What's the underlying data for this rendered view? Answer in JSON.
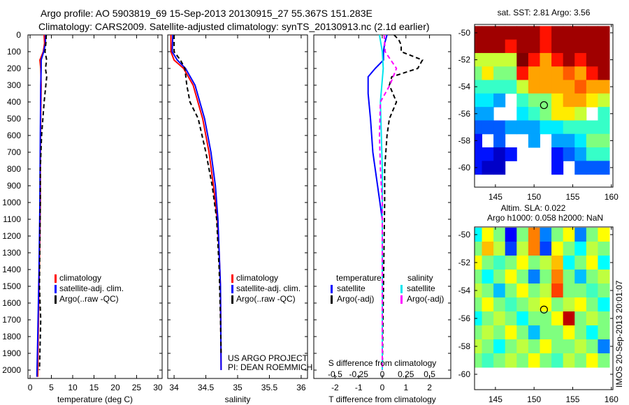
{
  "title": {
    "line1": "Argo profile: AO 5903819_69 15-Sep-2013 20130915_27 55.367S 151.283E",
    "line2": "Climatology: CARS2009. Satellite-adjusted climatology: synTS_20130913.nc (2.1d earlier)"
  },
  "side_stamp": "IMOS 20-Sep-2013 20:01:07",
  "annotation": {
    "line1": "US ARGO PROJECT",
    "line2": "PI: DEAN ROEMMICH"
  },
  "colors": {
    "clim": "#ff0000",
    "sat": "#0000ff",
    "argo": "#000000",
    "sal_sat": "#00e5ee",
    "sal_argo": "#ff00ff"
  },
  "chart_data": [
    {
      "type": "line",
      "name": "temperature",
      "xlabel": "temperature (deg C)",
      "xlim": [
        -0.5,
        31
      ],
      "ylim": [
        2050,
        0
      ],
      "xticks": [
        "0",
        "5",
        "10",
        "15",
        "20",
        "25",
        "30"
      ],
      "yticks": [
        "0",
        "100",
        "200",
        "300",
        "400",
        "500",
        "600",
        "700",
        "800",
        "900",
        "1000",
        "1100",
        "1200",
        "1300",
        "1400",
        "1500",
        "1600",
        "1700",
        "1800",
        "1900",
        "2000"
      ],
      "legend": [
        "climatology",
        "satellite-adj. clim.",
        "Argo(..raw -QC)"
      ],
      "series": [
        {
          "name": "climatology",
          "color": "#ff0000",
          "dash": false,
          "points": [
            [
              3.3,
              0
            ],
            [
              3.4,
              50
            ],
            [
              3.1,
              100
            ],
            [
              2.3,
              150
            ],
            [
              2.5,
              200
            ],
            [
              2.6,
              300
            ],
            [
              2.5,
              500
            ],
            [
              2.4,
              800
            ],
            [
              2.4,
              1000
            ],
            [
              2.3,
              1200
            ],
            [
              2.1,
              1500
            ],
            [
              1.9,
              1800
            ],
            [
              1.8,
              2040
            ]
          ]
        },
        {
          "name": "satellite-adj. clim.",
          "color": "#0000ff",
          "dash": false,
          "points": [
            [
              3.6,
              0
            ],
            [
              3.6,
              50
            ],
            [
              3.2,
              100
            ],
            [
              2.6,
              150
            ],
            [
              2.6,
              200
            ],
            [
              2.5,
              300
            ],
            [
              2.4,
              600
            ],
            [
              2.3,
              1000
            ],
            [
              2.1,
              1400
            ],
            [
              1.8,
              1800
            ],
            [
              1.6,
              2040
            ]
          ]
        },
        {
          "name": "Argo(..raw -QC)",
          "color": "#000000",
          "dash": true,
          "points": [
            [
              3.8,
              0
            ],
            [
              3.7,
              50
            ],
            [
              3.5,
              100
            ],
            [
              3.9,
              150
            ],
            [
              3.6,
              200
            ],
            [
              3.9,
              250
            ],
            [
              3.7,
              300
            ],
            [
              3.3,
              400
            ],
            [
              2.7,
              600
            ],
            [
              2.4,
              800
            ],
            [
              2.4,
              1000
            ],
            [
              2.2,
              1500
            ],
            [
              2.5,
              1700
            ],
            [
              2.2,
              2000
            ]
          ]
        }
      ]
    },
    {
      "type": "line",
      "name": "salinity",
      "xlabel": "salinity",
      "xlim": [
        33.9,
        36.1
      ],
      "ylim": [
        2050,
        0
      ],
      "xticks": [
        "34",
        "34.5",
        "35",
        "35.5",
        "36"
      ],
      "legend": [
        "climatology",
        "satellite-adj. clim.",
        "Argo(..raw -QC)"
      ],
      "series": [
        {
          "name": "climatology",
          "color": "#ff0000",
          "dash": false,
          "points": [
            [
              33.95,
              0
            ],
            [
              33.95,
              100
            ],
            [
              34.0,
              150
            ],
            [
              34.15,
              200
            ],
            [
              34.3,
              300
            ],
            [
              34.45,
              500
            ],
            [
              34.55,
              700
            ],
            [
              34.62,
              900
            ],
            [
              34.68,
              1100
            ],
            [
              34.71,
              1300
            ],
            [
              34.73,
              1500
            ],
            [
              34.74,
              2000
            ]
          ]
        },
        {
          "name": "satellite-adj. clim.",
          "color": "#0000ff",
          "dash": false,
          "points": [
            [
              33.98,
              0
            ],
            [
              33.97,
              100
            ],
            [
              34.05,
              150
            ],
            [
              34.18,
              200
            ],
            [
              34.33,
              300
            ],
            [
              34.48,
              500
            ],
            [
              34.58,
              700
            ],
            [
              34.65,
              900
            ],
            [
              34.69,
              1100
            ],
            [
              34.73,
              1500
            ],
            [
              34.74,
              2000
            ]
          ]
        },
        {
          "name": "Argo(..raw -QC)",
          "color": "#000000",
          "dash": true,
          "points": [
            [
              34.0,
              0
            ],
            [
              34.0,
              100
            ],
            [
              34.1,
              150
            ],
            [
              34.17,
              200
            ],
            [
              34.2,
              300
            ],
            [
              34.25,
              400
            ],
            [
              34.38,
              500
            ],
            [
              34.5,
              700
            ],
            [
              34.6,
              900
            ],
            [
              34.67,
              1100
            ],
            [
              34.71,
              1400
            ],
            [
              34.73,
              1700
            ],
            [
              34.74,
              1900
            ]
          ]
        }
      ]
    },
    {
      "type": "line",
      "name": "difference",
      "xlabel": "T difference from climatology",
      "s_label": "S difference from climatology",
      "xlim": [
        -2.9,
        2.9
      ],
      "ylim": [
        2050,
        0
      ],
      "xticks": [
        "-2",
        "-1",
        "0",
        "1",
        "2"
      ],
      "s_ticks": [
        "-0.5",
        "-0.25",
        "0",
        "0.25",
        "0.5"
      ],
      "legend": {
        "temp_title": "temperature",
        "sal_title": "salinity",
        "items": [
          "satellite",
          "Argo(-adj)",
          "satellite",
          "Argo(-adj)"
        ]
      },
      "series": [
        {
          "name": "T satellite",
          "color": "#0000ff",
          "dash": false,
          "points": [
            [
              0.2,
              0
            ],
            [
              0.1,
              50
            ],
            [
              0.05,
              100
            ],
            [
              0.05,
              150
            ],
            [
              -0.3,
              200
            ],
            [
              -0.6,
              250
            ],
            [
              -0.6,
              350
            ],
            [
              -0.5,
              500
            ],
            [
              -0.4,
              700
            ],
            [
              -0.1,
              1000
            ],
            [
              0,
              1100
            ],
            [
              0,
              2000
            ]
          ]
        },
        {
          "name": "T Argo(-adj)",
          "color": "#000000",
          "dash": true,
          "points": [
            [
              0.5,
              0
            ],
            [
              0.7,
              30
            ],
            [
              0.8,
              60
            ],
            [
              0.8,
              100
            ],
            [
              1.7,
              150
            ],
            [
              1.5,
              200
            ],
            [
              0.4,
              250
            ],
            [
              0.3,
              300
            ],
            [
              0.6,
              400
            ],
            [
              0.3,
              500
            ],
            [
              0.2,
              600
            ],
            [
              0.1,
              800
            ],
            [
              0.1,
              1000
            ],
            [
              0,
              2000
            ]
          ]
        },
        {
          "name": "S satellite",
          "color": "#00e5ee",
          "dash": false,
          "scale": "S",
          "points": [
            [
              -0.03,
              0
            ],
            [
              0,
              100
            ],
            [
              0.01,
              200
            ],
            [
              -0.02,
              400
            ],
            [
              0,
              800
            ],
            [
              0,
              2000
            ]
          ]
        },
        {
          "name": "S Argo(-adj)",
          "color": "#ff00ff",
          "dash": true,
          "scale": "S",
          "points": [
            [
              0.02,
              0
            ],
            [
              0.03,
              100
            ],
            [
              0.15,
              200
            ],
            [
              0.08,
              300
            ],
            [
              -0.02,
              400
            ],
            [
              -0.03,
              600
            ],
            [
              -0.02,
              800
            ],
            [
              0,
              1000
            ],
            [
              0,
              2000
            ]
          ]
        }
      ]
    },
    {
      "type": "heatmap",
      "name": "sst-map",
      "title": "sat. SST: 2.81  Argo: 3.56",
      "xlim": [
        142.3,
        160.2
      ],
      "ylim": [
        -61.45,
        -49.38
      ],
      "xticks": [
        "145",
        "150",
        "155",
        "160"
      ],
      "yticks": [
        "-50",
        "-52",
        "-54",
        "-56",
        "-58",
        "-60"
      ],
      "lon": [
        142.5,
        144,
        145.5,
        147,
        148.5,
        150,
        151.5,
        153,
        154.5,
        156,
        157.5,
        159
      ],
      "lat": [
        -50,
        -51,
        -52,
        -53,
        -54,
        -55,
        -56,
        -57,
        -58,
        -59,
        -60
      ],
      "crange": [
        0,
        7
      ],
      "values": [
        [
          9,
          9,
          9,
          9,
          9,
          9,
          6,
          9,
          9,
          9,
          9,
          9
        ],
        [
          9,
          9,
          9,
          6,
          9,
          9,
          6,
          9,
          9,
          9,
          9,
          9
        ],
        [
          4,
          4,
          4,
          4,
          7,
          6,
          5,
          6,
          9,
          6,
          9,
          9
        ],
        [
          3.5,
          4.5,
          3.5,
          3.5,
          6,
          5,
          5,
          5,
          5.5,
          5,
          6,
          9
        ],
        [
          3,
          3,
          3,
          3,
          4,
          5,
          5,
          5,
          5,
          5.5,
          5,
          5
        ],
        [
          2.5,
          2.5,
          2,
          null,
          3,
          3.5,
          3.5,
          4.5,
          5,
          5,
          4.5,
          4
        ],
        [
          2,
          2,
          null,
          null,
          2.5,
          3,
          3.5,
          4.5,
          4.5,
          4,
          null,
          3
        ],
        [
          1.5,
          1.5,
          1.5,
          2,
          2,
          2,
          2.5,
          2.5,
          3,
          3,
          3,
          3
        ],
        [
          1,
          null,
          1.5,
          null,
          null,
          2,
          null,
          2,
          2,
          2.5,
          3.5,
          3.5
        ],
        [
          1,
          1,
          0.5,
          1,
          null,
          null,
          null,
          1,
          1.5,
          2,
          3,
          3
        ],
        [
          1,
          0.5,
          0.5,
          null,
          null,
          null,
          null,
          1,
          null,
          1.5,
          1.5,
          1.5
        ]
      ],
      "marker": [
        151.283,
        -55.367
      ]
    },
    {
      "type": "heatmap",
      "name": "sla-map",
      "title1": "Altim. SLA: 0.022",
      "title2": "Argo h1000: 0.058 h2000: NaN",
      "xlim": [
        142.3,
        160.2
      ],
      "ylim": [
        -61.1,
        -49.45
      ],
      "xticks": [
        "145",
        "150",
        "155",
        "160"
      ],
      "yticks": [
        "-50",
        "-52",
        "-54",
        "-56",
        "-58",
        "-60"
      ],
      "lon": [
        142.5,
        144,
        145.5,
        147,
        148.5,
        150,
        151.5,
        153,
        154.5,
        156,
        157.5,
        159
      ],
      "lat": [
        -50,
        -51,
        -52,
        -53,
        -54,
        -55,
        -56,
        -57,
        -58,
        -59,
        -60
      ],
      "crange": [
        -0.4,
        0.4
      ],
      "values": [
        [
          -0.1,
          0.1,
          0,
          -0.3,
          0,
          0.2,
          -0.2,
          0,
          0.1,
          -0.2,
          0,
          0.1
        ],
        [
          0,
          0.15,
          0.05,
          -0.25,
          0.05,
          0.2,
          -0.25,
          0.1,
          0,
          -0.1,
          0.05,
          0
        ],
        [
          0.1,
          0,
          -0.05,
          0,
          0.1,
          0,
          0.05,
          0.15,
          -0.1,
          0,
          0.1,
          -0.1
        ],
        [
          0,
          -0.1,
          0,
          0.1,
          0,
          -0.2,
          0,
          0.2,
          0,
          -0.15,
          0,
          0.05
        ],
        [
          0.05,
          0,
          -0.15,
          0,
          0.1,
          0,
          0.05,
          0.25,
          0,
          0,
          -0.05,
          0
        ],
        [
          0,
          0.1,
          0,
          -0.05,
          0,
          0.05,
          0.1,
          0,
          0.05,
          0.1,
          0,
          -0.1
        ],
        [
          -0.1,
          0,
          0.05,
          0,
          -0.1,
          0,
          0,
          0.1,
          0.35,
          0,
          0.05,
          0
        ],
        [
          0,
          0.05,
          0,
          0.1,
          0,
          -0.15,
          0,
          0,
          0.1,
          0,
          -0.1,
          0
        ],
        [
          0.05,
          0,
          -0.1,
          0,
          0.05,
          0,
          0.1,
          0,
          0,
          0.05,
          0,
          -0.2
        ],
        [
          0,
          -0.05,
          0,
          0.05,
          0,
          0.1,
          0,
          -0.05,
          0.05,
          0,
          0.1,
          0
        ],
        [
          null,
          null,
          null,
          null,
          null,
          null,
          null,
          null,
          null,
          null,
          null,
          null
        ]
      ],
      "marker": [
        151.283,
        -55.367
      ]
    }
  ]
}
